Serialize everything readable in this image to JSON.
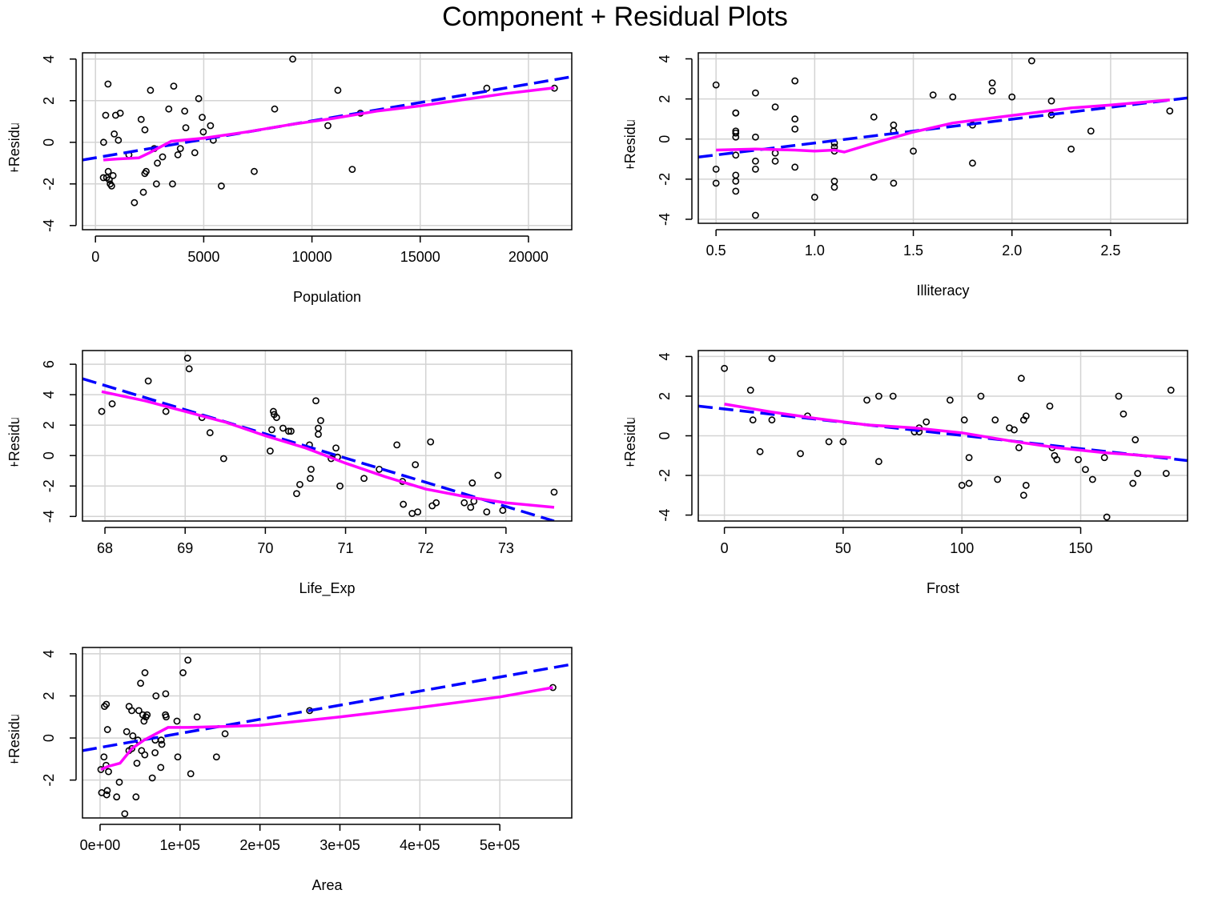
{
  "figure": {
    "title": "Component + Residual Plots"
  },
  "chart_data": [
    {
      "type": "scatter",
      "title": "",
      "xlabel": "Population",
      "ylabel": "Component+Residual(Murder)",
      "xlim": [
        -600,
        22000
      ],
      "ylim": [
        -4.2,
        4.3
      ],
      "xticks": [
        0,
        5000,
        10000,
        15000,
        20000
      ],
      "xtick_labels": [
        "0",
        "5000",
        "10000",
        "15000",
        "20000"
      ],
      "yticks": [
        -4,
        -2,
        0,
        2,
        4
      ],
      "ytick_labels": [
        "-4",
        "-2",
        "0",
        "2",
        "4"
      ],
      "grid": true,
      "points": [
        [
          365,
          -1.7
        ],
        [
          376,
          0.0
        ],
        [
          472,
          1.3
        ],
        [
          515,
          -1.7
        ],
        [
          579,
          2.8
        ],
        [
          590,
          -1.4
        ],
        [
          637,
          -1.8
        ],
        [
          681,
          -2.0
        ],
        [
          746,
          -2.1
        ],
        [
          812,
          -1.6
        ],
        [
          931,
          1.3
        ],
        [
          868,
          0.4
        ],
        [
          1058,
          0.1
        ],
        [
          1144,
          1.4
        ],
        [
          1544,
          -0.6
        ],
        [
          1799,
          -2.9
        ],
        [
          2110,
          1.1
        ],
        [
          2212,
          -2.4
        ],
        [
          2284,
          0.6
        ],
        [
          2280,
          -1.5
        ],
        [
          2341,
          -1.4
        ],
        [
          2541,
          2.5
        ],
        [
          2715,
          -0.3
        ],
        [
          2816,
          -2.0
        ],
        [
          2861,
          -1.0
        ],
        [
          3100,
          -0.7
        ],
        [
          3387,
          1.6
        ],
        [
          3559,
          -2.0
        ],
        [
          3615,
          2.7
        ],
        [
          3806,
          -0.6
        ],
        [
          3921,
          -0.3
        ],
        [
          4122,
          1.5
        ],
        [
          4173,
          0.7
        ],
        [
          4589,
          -0.5
        ],
        [
          4767,
          2.1
        ],
        [
          4931,
          1.2
        ],
        [
          4981,
          0.5
        ],
        [
          5313,
          0.8
        ],
        [
          5441,
          0.1
        ],
        [
          5814,
          -2.1
        ],
        [
          7333,
          -1.4
        ],
        [
          8277,
          1.6
        ],
        [
          9111,
          4.0
        ],
        [
          10735,
          0.8
        ],
        [
          11197,
          2.5
        ],
        [
          11860,
          -1.3
        ],
        [
          12237,
          1.4
        ],
        [
          18076,
          2.6
        ],
        [
          21198,
          2.6
        ]
      ],
      "fit_line": {
        "x": [
          -600,
          22000
        ],
        "y": [
          -0.85,
          3.15
        ]
      },
      "smooth_line": {
        "x": [
          365,
          1000,
          2000,
          2500,
          3500,
          5000,
          7000,
          9000,
          11000,
          13000,
          15000,
          17000,
          19000,
          21198
        ],
        "y": [
          -0.85,
          -0.8,
          -0.75,
          -0.5,
          0.05,
          0.2,
          0.5,
          0.85,
          1.15,
          1.5,
          1.75,
          2.05,
          2.35,
          2.62
        ]
      }
    },
    {
      "type": "scatter",
      "title": "",
      "xlabel": "Illiteracy",
      "ylabel": "Component+Residual(Murder)",
      "xlim": [
        0.41,
        2.89
      ],
      "ylim": [
        -4.2,
        4.3
      ],
      "xticks": [
        0.5,
        1.0,
        1.5,
        2.0,
        2.5
      ],
      "xtick_labels": [
        "0.5",
        "1.0",
        "1.5",
        "2.0",
        "2.5"
      ],
      "yticks": [
        -4,
        -2,
        0,
        2,
        4
      ],
      "ytick_labels": [
        "-4",
        "-2",
        "0",
        "2",
        "4"
      ],
      "grid": true,
      "points": [
        [
          0.5,
          2.7
        ],
        [
          0.5,
          -1.5
        ],
        [
          0.5,
          -2.2
        ],
        [
          0.6,
          1.3
        ],
        [
          0.6,
          1.3
        ],
        [
          0.6,
          0.4
        ],
        [
          0.6,
          0.3
        ],
        [
          0.6,
          0.1
        ],
        [
          0.6,
          -0.8
        ],
        [
          0.6,
          -1.8
        ],
        [
          0.6,
          -2.1
        ],
        [
          0.6,
          -2.6
        ],
        [
          0.7,
          2.3
        ],
        [
          0.7,
          0.1
        ],
        [
          0.7,
          -1.1
        ],
        [
          0.7,
          -1.5
        ],
        [
          0.7,
          -3.8
        ],
        [
          0.8,
          1.6
        ],
        [
          0.8,
          -0.7
        ],
        [
          0.8,
          -1.1
        ],
        [
          0.9,
          2.9
        ],
        [
          0.9,
          1.0
        ],
        [
          0.9,
          0.5
        ],
        [
          0.9,
          -1.4
        ],
        [
          1.0,
          -2.9
        ],
        [
          1.1,
          -0.2
        ],
        [
          1.1,
          -0.4
        ],
        [
          1.1,
          -0.6
        ],
        [
          1.1,
          -2.1
        ],
        [
          1.1,
          -2.4
        ],
        [
          1.3,
          1.1
        ],
        [
          1.3,
          -1.9
        ],
        [
          1.4,
          0.7
        ],
        [
          1.4,
          0.4
        ],
        [
          1.4,
          -2.2
        ],
        [
          1.5,
          -0.6
        ],
        [
          1.6,
          2.2
        ],
        [
          1.7,
          2.1
        ],
        [
          1.8,
          0.7
        ],
        [
          1.8,
          -1.2
        ],
        [
          1.9,
          2.8
        ],
        [
          1.9,
          2.4
        ],
        [
          2.0,
          2.1
        ],
        [
          2.1,
          3.9
        ],
        [
          2.2,
          1.9
        ],
        [
          2.2,
          1.2
        ],
        [
          2.3,
          -0.5
        ],
        [
          2.4,
          0.4
        ],
        [
          2.8,
          1.4
        ]
      ],
      "fit_line": {
        "x": [
          0.41,
          2.89
        ],
        "y": [
          -0.9,
          2.05
        ]
      },
      "smooth_line": {
        "x": [
          0.5,
          0.7,
          0.9,
          1.0,
          1.1,
          1.15,
          1.3,
          1.5,
          1.7,
          1.9,
          2.1,
          2.3,
          2.5,
          2.8
        ],
        "y": [
          -0.55,
          -0.5,
          -0.55,
          -0.6,
          -0.55,
          -0.65,
          -0.2,
          0.35,
          0.8,
          1.05,
          1.3,
          1.55,
          1.7,
          1.95
        ]
      }
    },
    {
      "type": "scatter",
      "title": "",
      "xlabel": "Life_Exp",
      "ylabel": "Component+Residual(Murder)",
      "xlim": [
        67.72,
        73.82
      ],
      "ylim": [
        -4.3,
        6.9
      ],
      "xticks": [
        68,
        69,
        70,
        71,
        72,
        73
      ],
      "xtick_labels": [
        "68",
        "69",
        "70",
        "71",
        "72",
        "73"
      ],
      "yticks": [
        -4,
        -2,
        0,
        2,
        4,
        6
      ],
      "ytick_labels": [
        "-4",
        "-2",
        "0",
        "2",
        "4",
        "6"
      ],
      "grid": true,
      "points": [
        [
          67.96,
          2.9
        ],
        [
          68.09,
          3.4
        ],
        [
          68.54,
          4.9
        ],
        [
          68.76,
          2.9
        ],
        [
          69.03,
          6.4
        ],
        [
          69.05,
          5.7
        ],
        [
          69.21,
          2.5
        ],
        [
          69.31,
          1.5
        ],
        [
          69.48,
          -0.2
        ],
        [
          70.06,
          0.3
        ],
        [
          70.08,
          1.7
        ],
        [
          70.1,
          2.9
        ],
        [
          70.11,
          2.7
        ],
        [
          70.14,
          2.5
        ],
        [
          70.22,
          1.8
        ],
        [
          70.29,
          1.6
        ],
        [
          70.32,
          1.6
        ],
        [
          70.39,
          -2.5
        ],
        [
          70.43,
          -1.9
        ],
        [
          70.55,
          0.7
        ],
        [
          70.56,
          -1.5
        ],
        [
          70.57,
          -0.9
        ],
        [
          70.63,
          3.6
        ],
        [
          70.66,
          1.4
        ],
        [
          70.66,
          1.8
        ],
        [
          70.69,
          2.3
        ],
        [
          70.82,
          -0.2
        ],
        [
          70.88,
          0.5
        ],
        [
          70.9,
          -0.1
        ],
        [
          70.93,
          -2.0
        ],
        [
          71.23,
          -1.5
        ],
        [
          71.42,
          -0.9
        ],
        [
          71.64,
          0.7
        ],
        [
          71.71,
          -1.7
        ],
        [
          71.72,
          -3.2
        ],
        [
          71.83,
          -3.8
        ],
        [
          71.87,
          -0.6
        ],
        [
          71.9,
          -3.7
        ],
        [
          72.06,
          0.9
        ],
        [
          72.08,
          -3.3
        ],
        [
          72.13,
          -3.1
        ],
        [
          72.48,
          -3.1
        ],
        [
          72.56,
          -3.4
        ],
        [
          72.58,
          -1.8
        ],
        [
          72.6,
          -3.0
        ],
        [
          72.76,
          -3.7
        ],
        [
          72.9,
          -1.3
        ],
        [
          72.96,
          -3.6
        ],
        [
          73.6,
          -2.4
        ]
      ],
      "fit_line": {
        "x": [
          67.72,
          73.6
        ],
        "y": [
          5.05,
          -4.3
        ]
      },
      "smooth_line": {
        "x": [
          67.96,
          68.5,
          69.0,
          69.5,
          70.0,
          70.5,
          71.0,
          71.5,
          72.0,
          72.5,
          73.0,
          73.6
        ],
        "y": [
          4.2,
          3.6,
          2.9,
          2.2,
          1.3,
          0.5,
          -0.5,
          -1.4,
          -2.2,
          -2.7,
          -3.1,
          -3.4
        ]
      }
    },
    {
      "type": "scatter",
      "title": "",
      "xlabel": "Frost",
      "ylabel": "Component+Residual(Murder)",
      "xlim": [
        -11,
        195
      ],
      "ylim": [
        -4.3,
        4.3
      ],
      "xticks": [
        0,
        50,
        100,
        150
      ],
      "xtick_labels": [
        "0",
        "50",
        "100",
        "150"
      ],
      "yticks": [
        -4,
        -2,
        0,
        2,
        4
      ],
      "ytick_labels": [
        "-4",
        "-2",
        "0",
        "2",
        "4"
      ],
      "grid": true,
      "points": [
        [
          0,
          3.4
        ],
        [
          11,
          2.3
        ],
        [
          12,
          0.8
        ],
        [
          15,
          -0.8
        ],
        [
          20,
          3.9
        ],
        [
          20,
          0.8
        ],
        [
          32,
          -0.9
        ],
        [
          35,
          1.0
        ],
        [
          44,
          -0.3
        ],
        [
          50,
          -0.3
        ],
        [
          60,
          1.8
        ],
        [
          65,
          2.0
        ],
        [
          65,
          -1.3
        ],
        [
          71,
          2.0
        ],
        [
          80,
          0.2
        ],
        [
          82,
          0.2
        ],
        [
          82,
          0.4
        ],
        [
          85,
          0.7
        ],
        [
          95,
          1.8
        ],
        [
          100,
          -2.5
        ],
        [
          101,
          0.8
        ],
        [
          103,
          -2.4
        ],
        [
          103,
          -1.1
        ],
        [
          108,
          2.0
        ],
        [
          114,
          0.8
        ],
        [
          115,
          -2.2
        ],
        [
          120,
          0.4
        ],
        [
          122,
          0.3
        ],
        [
          124,
          -0.6
        ],
        [
          125,
          2.9
        ],
        [
          126,
          0.8
        ],
        [
          126,
          -3.0
        ],
        [
          127,
          -2.5
        ],
        [
          127,
          1.0
        ],
        [
          137,
          1.5
        ],
        [
          138,
          -0.6
        ],
        [
          139,
          -1.0
        ],
        [
          140,
          -1.2
        ],
        [
          149,
          -1.2
        ],
        [
          152,
          -1.7
        ],
        [
          155,
          -2.2
        ],
        [
          160,
          -1.1
        ],
        [
          161,
          -4.1
        ],
        [
          166,
          2.0
        ],
        [
          168,
          1.1
        ],
        [
          172,
          -2.4
        ],
        [
          173,
          -0.2
        ],
        [
          174,
          -1.9
        ],
        [
          186,
          -1.9
        ],
        [
          188,
          2.3
        ]
      ],
      "fit_line": {
        "x": [
          -11,
          195
        ],
        "y": [
          1.5,
          -1.25
        ]
      },
      "smooth_line": {
        "x": [
          0,
          20,
          40,
          60,
          80,
          100,
          120,
          140,
          160,
          188
        ],
        "y": [
          1.6,
          1.2,
          0.85,
          0.55,
          0.4,
          0.15,
          -0.25,
          -0.6,
          -0.85,
          -1.1
        ]
      }
    },
    {
      "type": "scatter",
      "title": "",
      "xlabel": "Area",
      "ylabel": "Component+Residual(Murder)",
      "xlim": [
        -22000,
        590000
      ],
      "ylim": [
        -3.8,
        4.3
      ],
      "xticks": [
        0,
        100000,
        200000,
        300000,
        400000,
        500000
      ],
      "xtick_labels": [
        "0e+00",
        "1e+05",
        "2e+05",
        "3e+05",
        "4e+05",
        "5e+05"
      ],
      "yticks": [
        -2,
        0,
        2,
        4
      ],
      "ytick_labels": [
        "-2",
        "0",
        "2",
        "4"
      ],
      "grid": true,
      "points": [
        [
          1049,
          -1.5
        ],
        [
          1982,
          -2.6
        ],
        [
          4862,
          -0.9
        ],
        [
          5552,
          1.5
        ],
        [
          7521,
          -1.3
        ],
        [
          7826,
          1.6
        ],
        [
          8257,
          -2.7
        ],
        [
          9027,
          -2.5
        ],
        [
          9267,
          0.4
        ],
        [
          10577,
          -1.6
        ],
        [
          20765,
          -2.8
        ],
        [
          24070,
          -2.1
        ],
        [
          30920,
          -3.6
        ],
        [
          33265,
          0.3
        ],
        [
          36097,
          -0.6
        ],
        [
          36291,
          1.5
        ],
        [
          39650,
          1.3
        ],
        [
          39780,
          -0.5
        ],
        [
          40975,
          0.1
        ],
        [
          44930,
          -2.8
        ],
        [
          46113,
          -1.2
        ],
        [
          47296,
          -0.1
        ],
        [
          48523,
          1.3
        ],
        [
          50708,
          2.6
        ],
        [
          51945,
          -0.6
        ],
        [
          53495,
          1.1
        ],
        [
          54970,
          0.8
        ],
        [
          55941,
          -0.8
        ],
        [
          56154,
          3.1
        ],
        [
          57332,
          1.0
        ],
        [
          58856,
          1.1
        ],
        [
          65301,
          -1.9
        ],
        [
          68782,
          -0.7
        ],
        [
          68995,
          -0.1
        ],
        [
          69919,
          2.0
        ],
        [
          75955,
          -1.4
        ],
        [
          76483,
          -0.1
        ],
        [
          77227,
          -0.3
        ],
        [
          81787,
          1.1
        ],
        [
          82096,
          2.1
        ],
        [
          82677,
          1.0
        ],
        [
          96184,
          0.8
        ],
        [
          97203,
          -0.9
        ],
        [
          103766,
          3.1
        ],
        [
          109889,
          3.7
        ],
        [
          113417,
          -1.7
        ],
        [
          121412,
          1.0
        ],
        [
          145587,
          -0.9
        ],
        [
          156361,
          0.2
        ],
        [
          262134,
          1.3
        ],
        [
          566432,
          2.4
        ]
      ],
      "fit_line": {
        "x": [
          -22000,
          590000
        ],
        "y": [
          -0.6,
          3.5
        ]
      },
      "smooth_line": {
        "x": [
          1049,
          10000,
          25000,
          40000,
          55000,
          70000,
          85000,
          110000,
          160000,
          200000,
          300000,
          400000,
          500000,
          566432
        ],
        "y": [
          -1.5,
          -1.35,
          -1.2,
          -0.5,
          -0.1,
          0.2,
          0.5,
          0.5,
          0.55,
          0.6,
          1.0,
          1.45,
          1.95,
          2.4
        ]
      }
    }
  ]
}
